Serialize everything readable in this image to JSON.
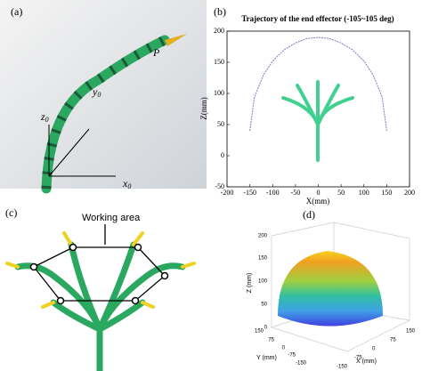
{
  "figure": {
    "panel_labels": [
      "(a)",
      "(b)",
      "(c)",
      "(d)"
    ]
  },
  "panel_a": {
    "point_label": "P",
    "z_axis": {
      "base": "z",
      "sub": "0"
    },
    "y_axis": {
      "base": "y",
      "sub": "0"
    },
    "x_axis": {
      "base": "x",
      "sub": "0"
    }
  },
  "panel_c": {
    "label": "Working area"
  },
  "panel_d": {
    "z_label": "Z (mm)",
    "y_label": "Y (mm)",
    "x_label": "X (mm)",
    "z_ticks": [
      0,
      50,
      100,
      150,
      200
    ],
    "y_ticks": [
      150,
      75,
      0,
      -75,
      -150
    ],
    "x_ticks": [
      -150,
      -75,
      0,
      75,
      150
    ]
  },
  "chart_data": {
    "type": "line",
    "title": "Trajectory of the end effector (-105~105 deg)",
    "x_label": "X(mm)",
    "y_label": "Z(mm)",
    "x": [
      -150,
      -140,
      -120,
      -100,
      -75,
      -50,
      -25,
      0,
      25,
      50,
      75,
      100,
      120,
      140,
      150
    ],
    "values": [
      40,
      94,
      130,
      152,
      170,
      181,
      188,
      190,
      188,
      181,
      170,
      152,
      130,
      94,
      40
    ],
    "color": "#7a7ac8",
    "xlim": [
      -200,
      200
    ],
    "ylim": [
      -50,
      200
    ],
    "xticks": [
      -200,
      -150,
      -100,
      -50,
      0,
      50,
      100,
      150,
      200
    ],
    "yticks": [
      -50,
      0,
      50,
      100,
      150,
      200
    ]
  }
}
